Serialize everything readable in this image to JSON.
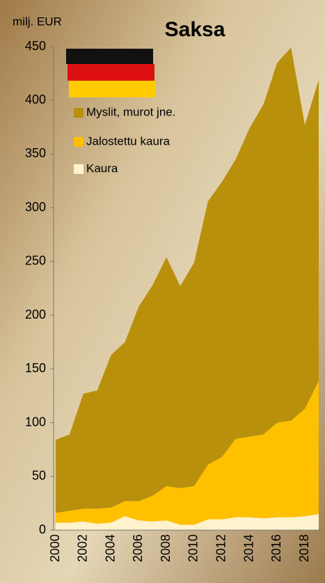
{
  "chart_data": {
    "type": "stacked_area",
    "title": "Saksa",
    "y_label": "milj. EUR",
    "categories": [
      "2000",
      null,
      "2002",
      null,
      "2004",
      null,
      "2006",
      null,
      "2008",
      null,
      "2010",
      null,
      "2012",
      null,
      "2014",
      null,
      "2016",
      null,
      "2018",
      null
    ],
    "series": [
      {
        "name": "Myslit, murot jne.",
        "color": "#b8900c",
        "values": [
          68,
          71,
          107,
          110,
          142,
          148,
          181,
          196,
          213,
          188,
          208,
          245,
          256,
          260,
          287,
          307,
          335,
          347,
          264,
          280
        ]
      },
      {
        "name": "Jalostettu kaura",
        "color": "#ffc000",
        "values": [
          9,
          11,
          12,
          14,
          14,
          14,
          18,
          24,
          32,
          34,
          36,
          51,
          58,
          73,
          75,
          78,
          88,
          90,
          100,
          124
        ]
      },
      {
        "name": "Kaura",
        "color": "#fff2cc",
        "values": [
          7,
          7,
          8,
          6,
          7,
          13,
          9,
          8,
          9,
          5,
          5,
          10,
          10,
          12,
          12,
          11,
          12,
          12,
          13,
          15
        ]
      }
    ],
    "ylim": [
      0,
      450
    ],
    "yticks": [
      0,
      50,
      100,
      150,
      200,
      250,
      300,
      350,
      400,
      450
    ]
  }
}
